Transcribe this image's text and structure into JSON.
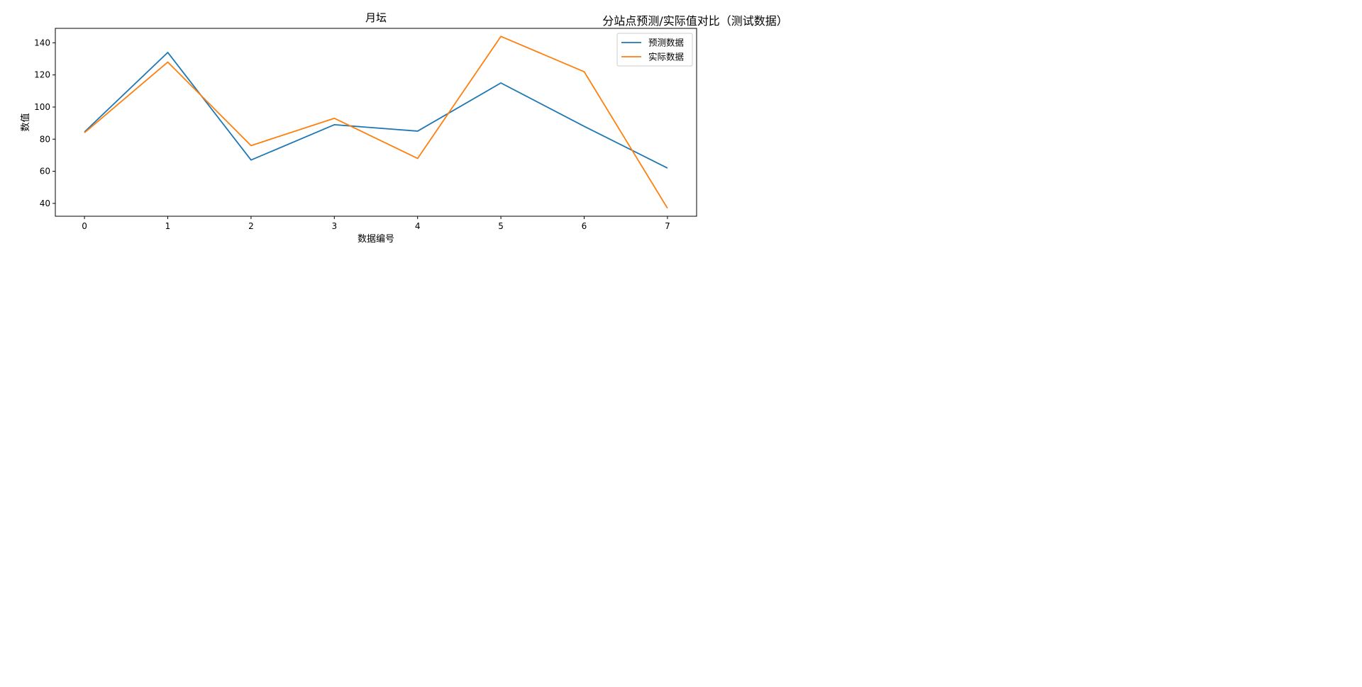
{
  "figure": {
    "suptitle": "分站点预测/实际值对比（测试数据）"
  },
  "chart_data": {
    "type": "line",
    "title": "月坛",
    "xlabel": "数据编号",
    "ylabel": "数值",
    "x": [
      0,
      1,
      2,
      3,
      4,
      5,
      6,
      7
    ],
    "xlim": [
      -0.35,
      7.35
    ],
    "ylim": [
      32,
      149
    ],
    "yticks": [
      40,
      60,
      80,
      100,
      120,
      140
    ],
    "grid": false,
    "legend_position": "top-right",
    "series": [
      {
        "name": "预测数据",
        "color": "#1f77b4",
        "values": [
          84.5,
          134,
          67,
          89,
          85,
          115,
          88,
          62
        ]
      },
      {
        "name": "实际数据",
        "color": "#ff7f0e",
        "values": [
          84,
          128,
          76,
          93,
          68,
          144,
          122,
          37
        ]
      }
    ]
  }
}
